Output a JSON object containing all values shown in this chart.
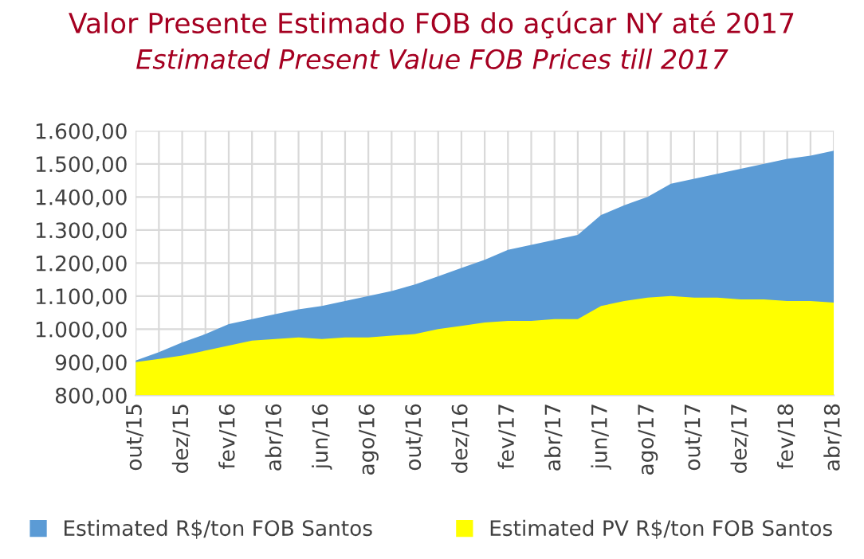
{
  "chart_data": {
    "type": "area",
    "title": "Valor Presente Estimado FOB do açúcar NY até 2017",
    "subtitle": "Estimated Present Value FOB Prices till 2017",
    "categories": [
      "out/15",
      null,
      "dez/15",
      null,
      "fev/16",
      null,
      "abr/16",
      null,
      "jun/16",
      null,
      "ago/16",
      null,
      "out/16",
      null,
      "dez/16",
      null,
      "fev/17",
      null,
      "abr/17",
      null,
      "jun/17",
      null,
      "ago/17",
      null,
      "out/17",
      null,
      "dez/17",
      null,
      "fev/18",
      null,
      "abr/18"
    ],
    "series": [
      {
        "name": "Estimated R$/ton FOB Santos",
        "color": "#5b9bd5",
        "values": [
          905,
          930,
          960,
          985,
          1015,
          1030,
          1045,
          1060,
          1070,
          1085,
          1100,
          1115,
          1135,
          1160,
          1185,
          1210,
          1240,
          1255,
          1270,
          1285,
          1345,
          1375,
          1400,
          1440,
          1455,
          1470,
          1485,
          1500,
          1515,
          1525,
          1540
        ]
      },
      {
        "name": "Estimated PV R$/ton FOB Santos",
        "color": "#ffff00",
        "values": [
          900,
          910,
          920,
          935,
          950,
          965,
          970,
          975,
          970,
          975,
          975,
          980,
          985,
          1000,
          1010,
          1020,
          1025,
          1025,
          1030,
          1030,
          1070,
          1085,
          1095,
          1100,
          1095,
          1095,
          1090,
          1090,
          1085,
          1085,
          1080
        ]
      }
    ],
    "ylim": [
      800,
      1600
    ],
    "yticks": [
      {
        "value": 800,
        "label": "800,00"
      },
      {
        "value": 900,
        "label": "900,00"
      },
      {
        "value": 1000,
        "label": "1.000,00"
      },
      {
        "value": 1100,
        "label": "1.100,00"
      },
      {
        "value": 1200,
        "label": "1.200,00"
      },
      {
        "value": 1300,
        "label": "1.300,00"
      },
      {
        "value": 1400,
        "label": "1.400,00"
      },
      {
        "value": 1500,
        "label": "1.500,00"
      },
      {
        "value": 1600,
        "label": "1.600,00"
      }
    ],
    "grid": true,
    "legend": "bottom"
  }
}
